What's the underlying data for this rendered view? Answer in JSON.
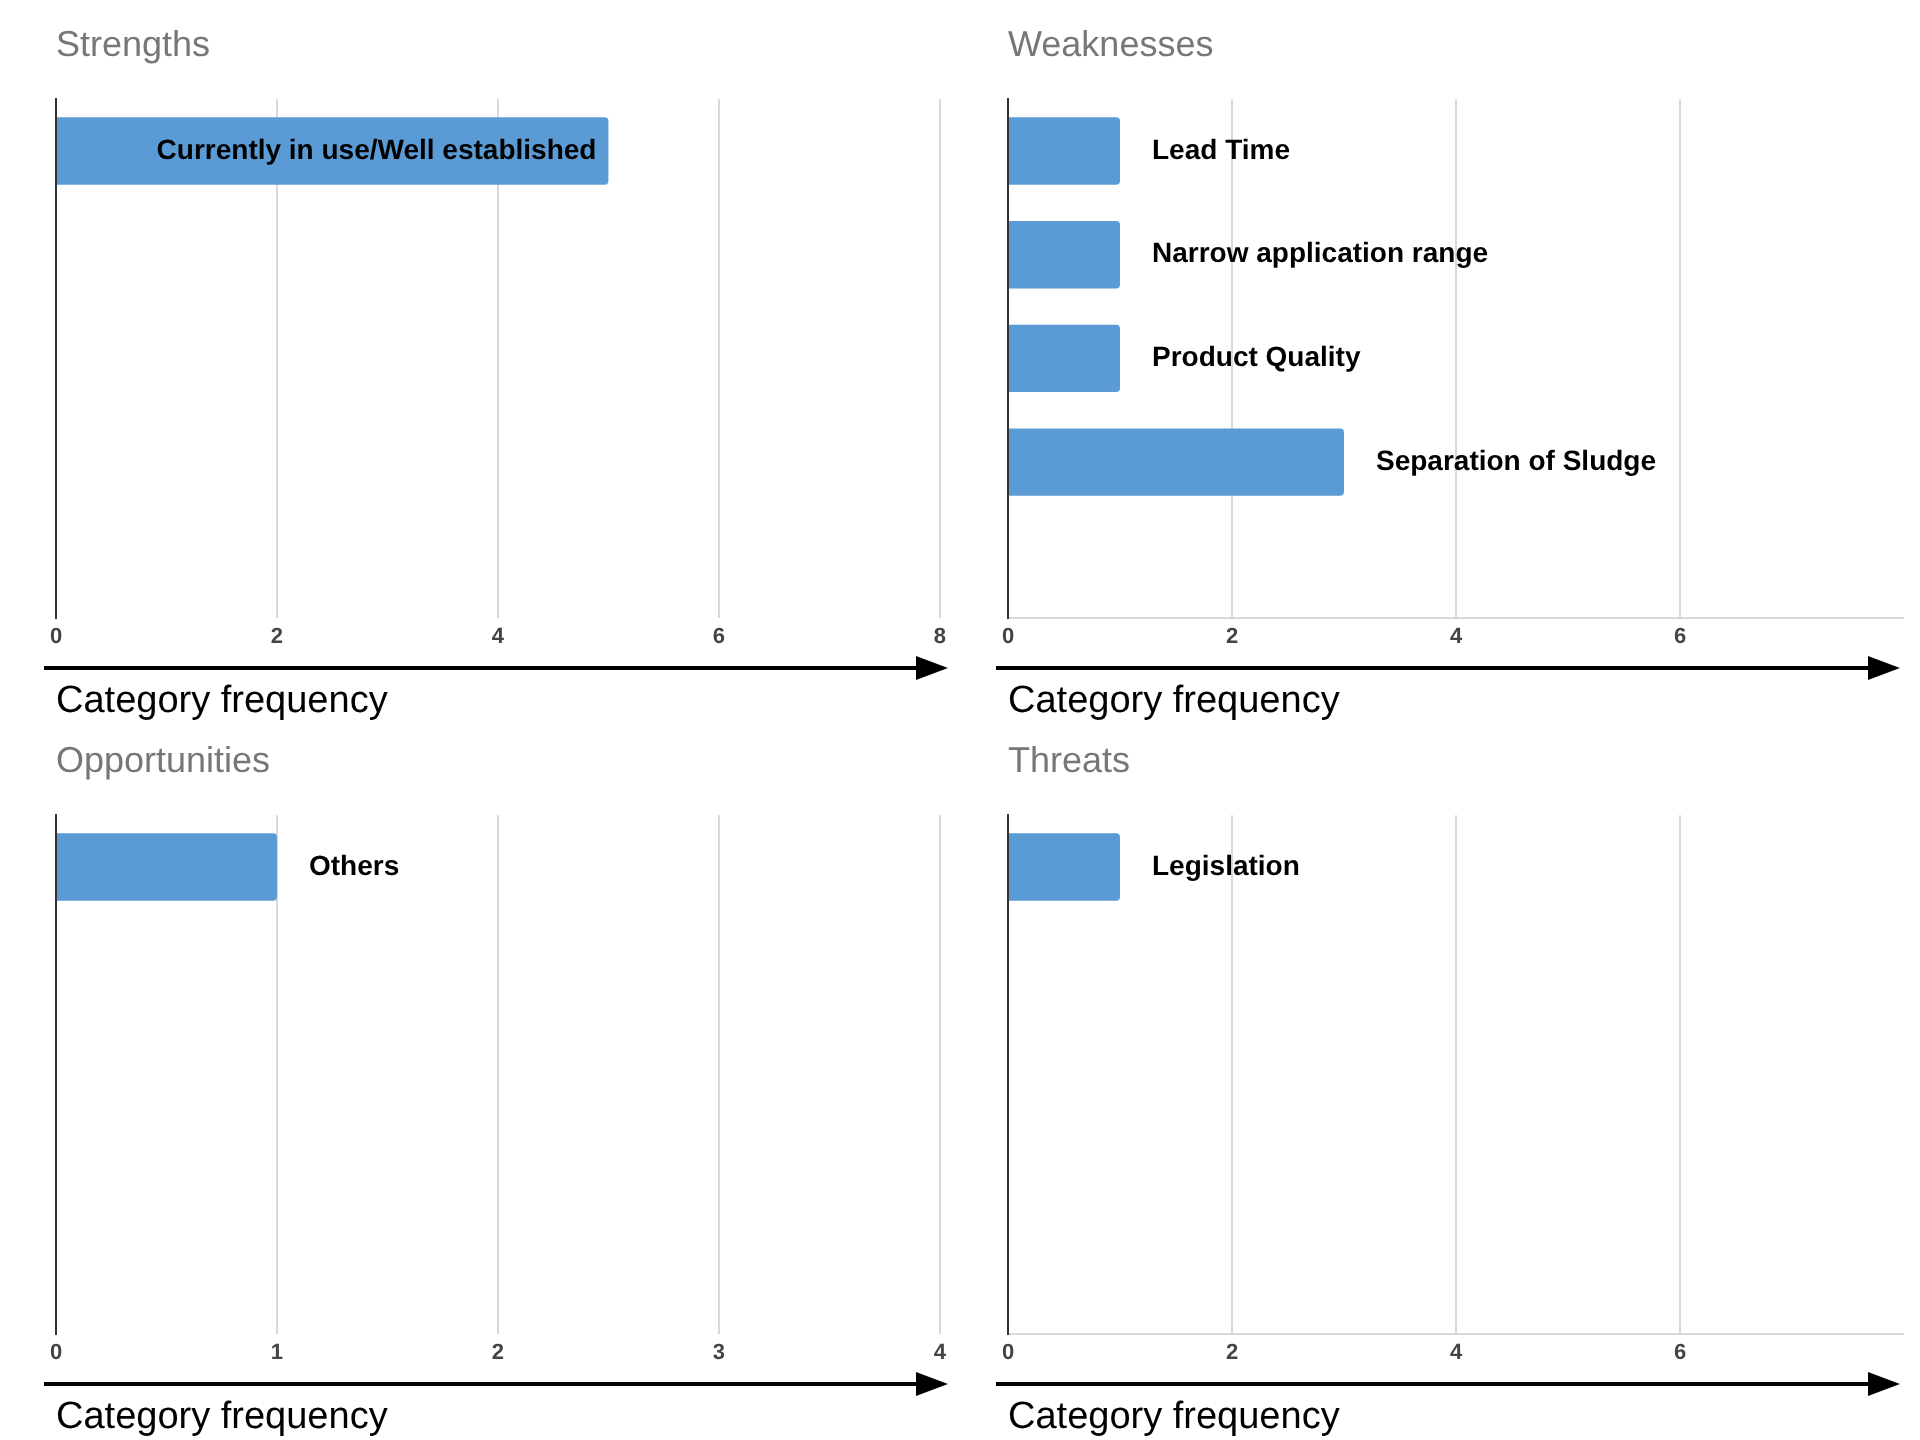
{
  "chart_data": [
    {
      "type": "bar",
      "orientation": "horizontal",
      "title": "Strengths",
      "xlabel": "Category frequency",
      "categories": [
        "Currently in use/Well established"
      ],
      "values": [
        5
      ],
      "color": "#5b9bd5",
      "xlim": [
        0,
        8
      ],
      "xticks": [
        0,
        2,
        4,
        6,
        8
      ],
      "grid": "x",
      "tick_labels": "x"
    },
    {
      "type": "bar",
      "orientation": "horizontal",
      "title": "Weaknesses",
      "xlabel": "Category frequency",
      "categories": [
        "Lead Time",
        "Narrow application range",
        "Product Quality",
        "Separation of Sludge"
      ],
      "values": [
        1,
        1,
        1,
        3
      ],
      "color": "#5b9bd5",
      "xlim": [
        0,
        8
      ],
      "xticks": [
        0,
        2,
        4,
        6
      ],
      "grid": "x",
      "tick_labels": "x"
    },
    {
      "type": "bar",
      "orientation": "horizontal",
      "title": "Opportunities",
      "xlabel": "Category frequency",
      "categories": [
        "Others"
      ],
      "values": [
        1
      ],
      "color": "#5b9bd5",
      "xlim": [
        0,
        4
      ],
      "xticks": [
        0,
        1,
        2,
        3,
        4
      ],
      "grid": "x",
      "tick_labels": "x"
    },
    {
      "type": "bar",
      "orientation": "horizontal",
      "title": "Threats",
      "xlabel": "Category frequency",
      "categories": [
        "Legislation"
      ],
      "values": [
        1
      ],
      "color": "#5b9bd5",
      "xlim": [
        0,
        8
      ],
      "xticks": [
        0,
        2,
        4,
        6
      ],
      "grid": "x",
      "tick_labels": "x"
    }
  ]
}
